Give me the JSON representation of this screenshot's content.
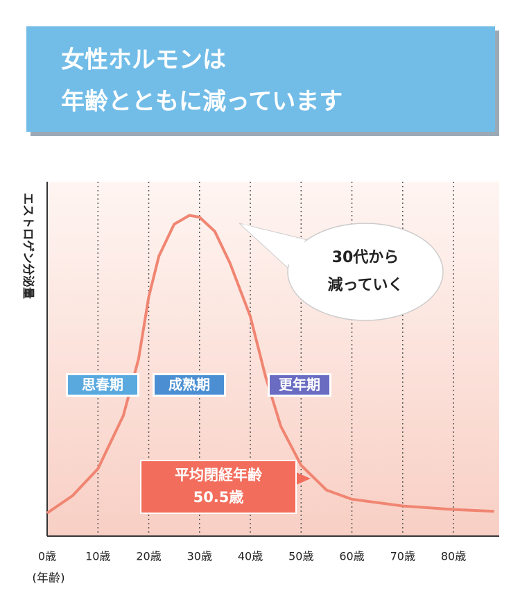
{
  "chart_data": {
    "type": "line",
    "title": [
      "女性ホルモンは",
      "年齢とともに減っています"
    ],
    "y_label": "エストロゲン分泌量",
    "x_label": "(年齢)",
    "x": [
      0,
      5,
      10,
      15,
      18,
      20,
      22,
      25,
      28,
      30,
      33,
      36,
      40,
      43,
      46,
      50,
      55,
      60,
      70,
      80,
      88
    ],
    "values": [
      6.5,
      11.4,
      19,
      34,
      50,
      67.5,
      79,
      88,
      90.5,
      90,
      86,
      77,
      62,
      45,
      31,
      20,
      13,
      10.4,
      8.5,
      7.5,
      7
    ],
    "color": "#f08572",
    "xlim": [
      0,
      89
    ],
    "ylim": [
      0,
      100
    ],
    "xticks": [
      {
        "value": 0,
        "label": "0歳"
      },
      {
        "value": 10,
        "label": "10歳"
      },
      {
        "value": 20,
        "label": "20歳"
      },
      {
        "value": 30,
        "label": "30歳"
      },
      {
        "value": 40,
        "label": "40歳"
      },
      {
        "value": 50,
        "label": "50歳"
      },
      {
        "value": 60,
        "label": "60歳"
      },
      {
        "value": 70,
        "label": "70歳"
      },
      {
        "value": 80,
        "label": "80歳"
      }
    ],
    "grid": true,
    "annotations": {
      "bubble": [
        "30代から",
        "減っていく"
      ],
      "phases": [
        {
          "label": "思春期",
          "color": "#5aa9de"
        },
        {
          "label": "成熟期",
          "color": "#4b8fd2"
        },
        {
          "label": "更年期",
          "color": "#6a6cc2"
        }
      ],
      "menopause": [
        "平均閉経年齢",
        "50.5歳"
      ]
    }
  }
}
